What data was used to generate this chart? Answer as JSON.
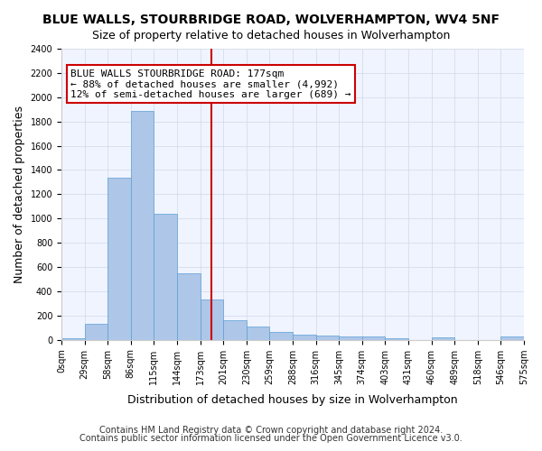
{
  "title": "BLUE WALLS, STOURBRIDGE ROAD, WOLVERHAMPTON, WV4 5NF",
  "subtitle": "Size of property relative to detached houses in Wolverhampton",
  "xlabel": "Distribution of detached houses by size in Wolverhampton",
  "ylabel": "Number of detached properties",
  "bin_labels": [
    "0sqm",
    "29sqm",
    "58sqm",
    "86sqm",
    "115sqm",
    "144sqm",
    "173sqm",
    "201sqm",
    "230sqm",
    "259sqm",
    "288sqm",
    "316sqm",
    "345sqm",
    "374sqm",
    "403sqm",
    "431sqm",
    "460sqm",
    "489sqm",
    "518sqm",
    "546sqm",
    "575sqm"
  ],
  "bar_heights": [
    15,
    130,
    1340,
    1890,
    1040,
    545,
    335,
    160,
    110,
    65,
    40,
    35,
    30,
    25,
    15,
    0,
    20,
    0,
    0,
    25
  ],
  "bar_color": "#aec6e8",
  "bar_edge_color": "#5a9fd4",
  "vline_x": 6.5,
  "vline_color": "#cc0000",
  "annotation_text": "BLUE WALLS STOURBRIDGE ROAD: 177sqm\n← 88% of detached houses are smaller (4,992)\n12% of semi-detached houses are larger (689) →",
  "annotation_box_color": "#ffffff",
  "annotation_box_edge": "#cc0000",
  "ylim": [
    0,
    2400
  ],
  "yticks": [
    0,
    200,
    400,
    600,
    800,
    1000,
    1200,
    1400,
    1600,
    1800,
    2000,
    2200,
    2400
  ],
  "footer1": "Contains HM Land Registry data © Crown copyright and database right 2024.",
  "footer2": "Contains public sector information licensed under the Open Government Licence v3.0.",
  "bg_color": "#f0f4ff",
  "grid_color": "#d0d8e8",
  "title_fontsize": 10,
  "subtitle_fontsize": 9,
  "xlabel_fontsize": 9,
  "ylabel_fontsize": 9,
  "tick_fontsize": 7,
  "annotation_fontsize": 8,
  "footer_fontsize": 7
}
